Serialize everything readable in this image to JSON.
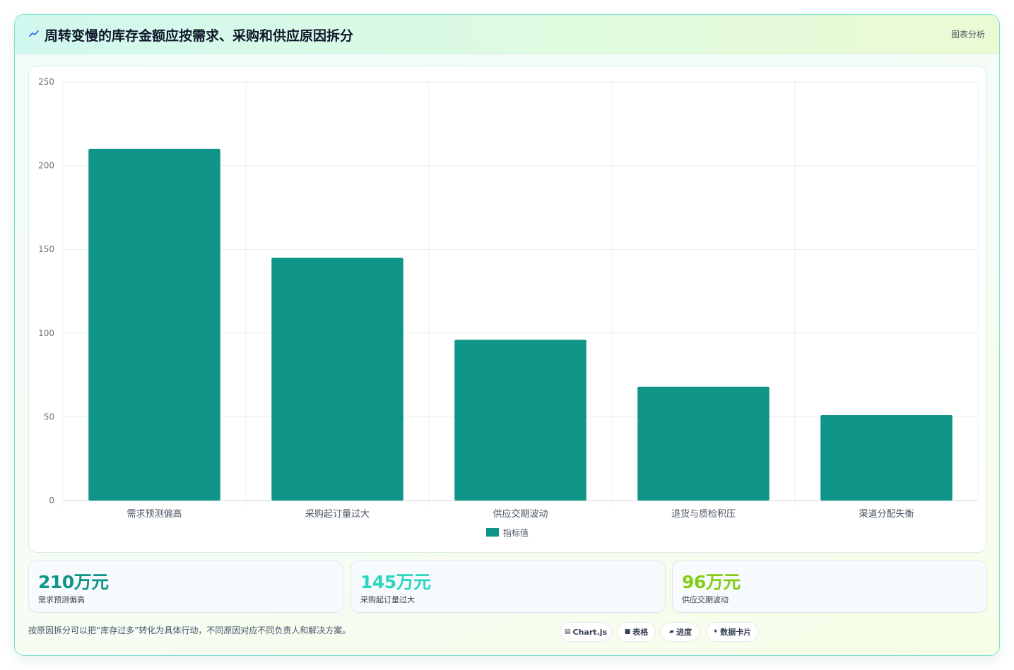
{
  "header": {
    "title": "周转变慢的库存金额应按需求、采购和供应原因拆分",
    "tag": "图表分析",
    "icon": "trend-line-icon"
  },
  "chart_data": {
    "type": "bar",
    "categories": [
      "需求预测偏高",
      "采购起订量过大",
      "供应交期波动",
      "退货与质检积压",
      "渠道分配失衡"
    ],
    "series": [
      {
        "name": "指标值",
        "values": [
          210,
          145,
          96,
          68,
          51
        ],
        "color": "#0f9488"
      }
    ],
    "ylim": [
      0,
      250
    ],
    "yticks": [
      0,
      50,
      100,
      150,
      200,
      250
    ],
    "grid": true,
    "legend_position": "bottom"
  },
  "kpis": [
    {
      "value": "210万元",
      "label": "需求预测偏高",
      "color": "#0f9488"
    },
    {
      "value": "145万元",
      "label": "采购起订量过大",
      "color": "#2dd4bf"
    },
    {
      "value": "96万元",
      "label": "供应交期波动",
      "color": "#84cc16"
    }
  ],
  "footer": {
    "note": "按原因拆分可以把“库存过多”转化为具体行动，不同原因对应不同负责人和解决方案。",
    "chips": [
      {
        "icon": "▤",
        "label": "Chart.js"
      },
      {
        "icon": "■",
        "label": "表格"
      },
      {
        "icon": "▰",
        "label": "进度"
      },
      {
        "icon": "✦",
        "label": "数据卡片"
      }
    ]
  }
}
